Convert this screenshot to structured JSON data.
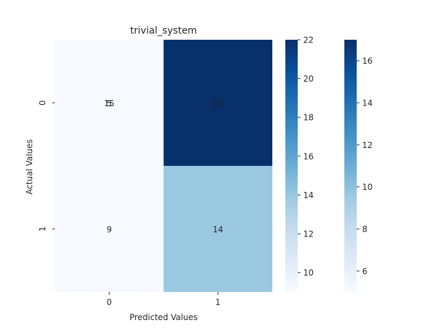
{
  "chart_data": {
    "type": "heatmap",
    "title": "trivial_system",
    "xlabel": "Predicted Values",
    "ylabel": "Actual Values",
    "x_categories": [
      "0",
      "1"
    ],
    "y_categories": [
      "0",
      "1"
    ],
    "colormap": "Blues",
    "layers": [
      {
        "values": [
          [
            15,
            22
          ],
          [
            9,
            14
          ]
        ],
        "vmin": 9,
        "vmax": 22,
        "colorbar_ticks": [
          10,
          12,
          14,
          16,
          18,
          20,
          22
        ]
      },
      {
        "values": [
          [
            5,
            17
          ],
          [
            null,
            null
          ]
        ],
        "vmin": 5,
        "vmax": 17,
        "colorbar_ticks": [
          6,
          8,
          10,
          12,
          14,
          16
        ]
      }
    ],
    "annotation_color": "#262626"
  }
}
